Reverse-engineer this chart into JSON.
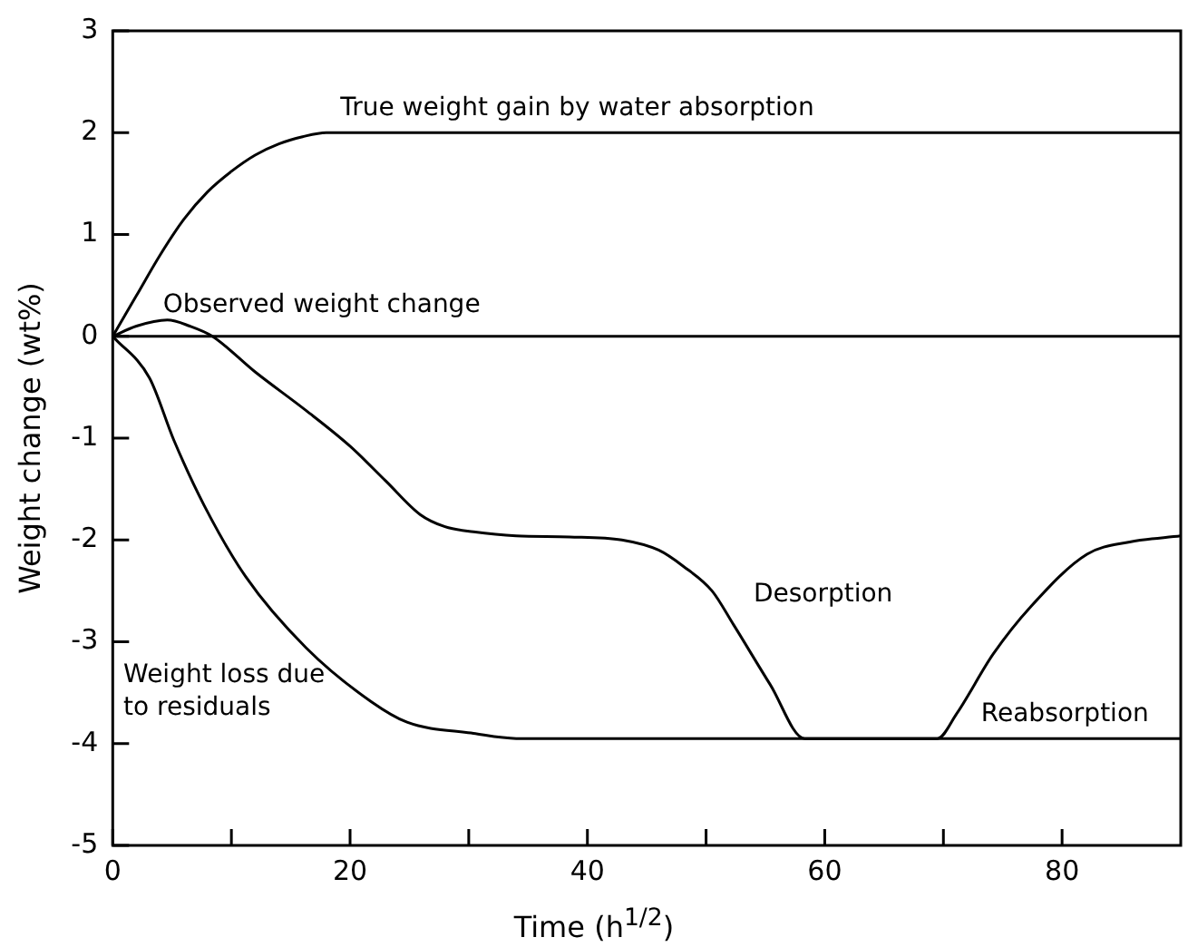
{
  "chart_data": {
    "type": "line",
    "xlabel": "Time (h$^{1/2}$)",
    "ylabel": "Weight change (wt%)",
    "xlim": [
      0,
      90
    ],
    "ylim": [
      -5,
      3
    ],
    "xticks": [
      0,
      {
        "value": 10,
        "label": null
      },
      20,
      {
        "value": 30,
        "label": null
      },
      40,
      {
        "value": 50,
        "label": null
      },
      60,
      {
        "value": 70,
        "label": null
      },
      80
    ],
    "yticks": [
      -5,
      -4,
      -3,
      -2,
      -1,
      0,
      1,
      2,
      3
    ],
    "grid": false,
    "legend": false,
    "marker": "none",
    "line_style": "solid",
    "ref_lines": [
      {
        "axis": "y",
        "value": 0,
        "color": "#000000"
      }
    ],
    "series": [
      {
        "color": "#000000",
        "x": [
          0,
          2,
          4,
          6,
          8,
          10,
          12,
          14,
          16,
          18,
          20,
          90
        ],
        "values": [
          0,
          0.4,
          0.8,
          1.15,
          1.42,
          1.62,
          1.78,
          1.89,
          1.96,
          2,
          2,
          2
        ]
      },
      {
        "color": "#000000",
        "x": [
          0,
          2,
          4.6,
          6.5,
          8.4,
          12,
          16.3,
          20,
          23,
          25.9,
          28,
          30.4,
          34,
          38.5,
          42.9,
          46,
          48.1,
          50.5,
          52.3,
          55.4,
          58.3,
          69.5,
          71.1,
          74.2,
          77.4,
          82.1,
          85.7,
          90
        ],
        "values": [
          0,
          0.1,
          0.16,
          0.1,
          0,
          -0.35,
          -0.73,
          -1.08,
          -1.42,
          -1.75,
          -1.87,
          -1.92,
          -1.96,
          -1.97,
          -2,
          -2.1,
          -2.26,
          -2.5,
          -2.83,
          -3.42,
          -3.95,
          -3.95,
          -3.71,
          -3.12,
          -2.65,
          -2.14,
          -2.02,
          -1.96
        ]
      },
      {
        "color": "#000000",
        "x": [
          0,
          3.1,
          5.15,
          7.7,
          11.2,
          16.3,
          21.8,
          24.8,
          30.4,
          34,
          90
        ],
        "values": [
          0,
          -0.41,
          -1.02,
          -1.66,
          -2.36,
          -3.06,
          -3.59,
          -3.79,
          -3.9,
          -3.95,
          -3.95
        ]
      }
    ],
    "annotations": [
      "True weight gain by water absorption",
      "Observed weight change",
      "Desorption",
      "Reabsorption",
      "Weight loss due to residuals"
    ]
  }
}
